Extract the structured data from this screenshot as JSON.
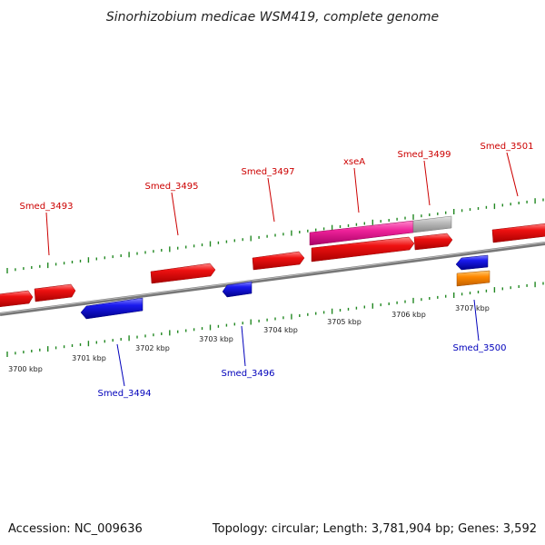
{
  "title": "Sinorhizobium medicae WSM419, complete genome",
  "footer": {
    "accession": "Accession: NC_009636",
    "summary": "Topology: circular; Length: 3,781,904 bp; Genes: 3,592"
  },
  "colors": {
    "forward_cds": "#ee1111",
    "reverse_cds": "#1a1aee",
    "forward_label": "#cc0000",
    "reverse_label": "#0000bb",
    "misc_feature": "#ff8800",
    "highlight": "#ee2299",
    "partial": "#bbbbbb",
    "backbone": "#888888",
    "ticks": "#228822"
  },
  "scale": {
    "labels": [
      "3700 kbp",
      "3701 kbp",
      "3702 kbp",
      "3703 kbp",
      "3704 kbp",
      "3705 kbp",
      "3706 kbp",
      "3707 kbp"
    ]
  },
  "forward_labels": [
    "Smed_3493",
    "Smed_3495",
    "Smed_3497",
    "xseA",
    "Smed_3499",
    "Smed_3501"
  ],
  "reverse_labels": [
    "Smed_3494",
    "Smed_3496",
    "Smed_3500"
  ]
}
